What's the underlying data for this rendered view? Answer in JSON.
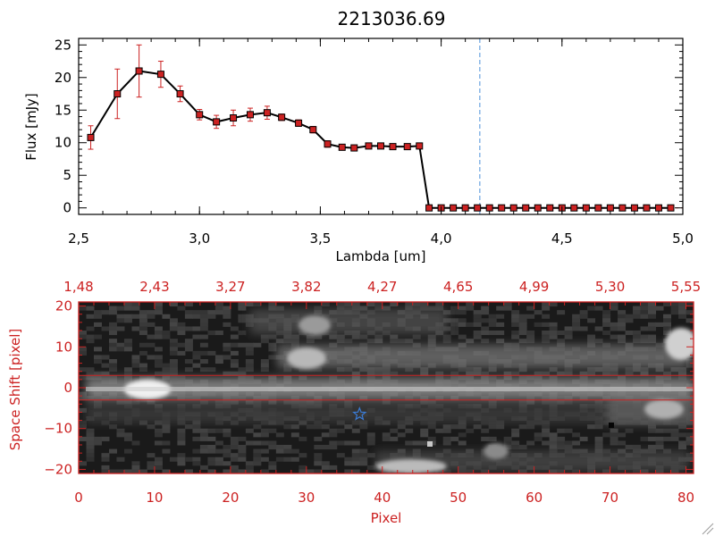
{
  "colors": {
    "line": "#000000",
    "marker": "#cc2222",
    "errorbar": "#cc2222",
    "dashed_line": "#4a90d9",
    "image_frame": "#cc2222",
    "star": "#3a7bd5"
  },
  "chart_data": [
    {
      "type": "line",
      "title": "2213036.69",
      "xlabel": "Lambda [um]",
      "ylabel": "Flux [mJy]",
      "xlim": [
        2.5,
        5.0
      ],
      "ylim": [
        -1,
        26
      ],
      "xticks": [
        2.5,
        3.0,
        3.5,
        4.0,
        4.5,
        5.0
      ],
      "xtick_labels": [
        "2,5",
        "3,0",
        "3,5",
        "4,0",
        "4,5",
        "5,0"
      ],
      "yticks": [
        0,
        5,
        10,
        15,
        20,
        25
      ],
      "ytick_labels": [
        "0",
        "5",
        "10",
        "15",
        "20",
        "25"
      ],
      "vline_x": 4.16,
      "grid": false,
      "series": [
        {
          "x": [
            2.55,
            2.66,
            2.75,
            2.84,
            2.92,
            3.0,
            3.07,
            3.14,
            3.21,
            3.28,
            3.34,
            3.41,
            3.47,
            3.53,
            3.59,
            3.64,
            3.7,
            3.75,
            3.8,
            3.86,
            3.91,
            3.95,
            4.0,
            4.05,
            4.1,
            4.15,
            4.2,
            4.25,
            4.3,
            4.35,
            4.4,
            4.45,
            4.5,
            4.55,
            4.6,
            4.65,
            4.7,
            4.75,
            4.8,
            4.85,
            4.9,
            4.95
          ],
          "y": [
            10.8,
            17.5,
            21.0,
            20.5,
            17.5,
            14.3,
            13.2,
            13.8,
            14.3,
            14.6,
            13.9,
            13.0,
            12.0,
            9.8,
            9.3,
            9.2,
            9.5,
            9.5,
            9.4,
            9.4,
            9.5,
            0.0,
            0.0,
            0.0,
            0.0,
            0.0,
            0.0,
            0.0,
            0.0,
            0.0,
            0.0,
            0.0,
            0.0,
            0.0,
            0.0,
            0.0,
            0.0,
            0.0,
            0.0,
            0.0,
            0.0,
            0.0
          ],
          "yerr": [
            1.8,
            3.8,
            4.0,
            2.0,
            1.2,
            0.8,
            1.0,
            1.2,
            1.0,
            1.0,
            0.5,
            0.5,
            0.5,
            0.5,
            0.4,
            0.4,
            0.4,
            0.4,
            0.4,
            0.4,
            0.4,
            0,
            0,
            0,
            0,
            0,
            0,
            0,
            0,
            0,
            0,
            0,
            0,
            0,
            0,
            0,
            0,
            0,
            0,
            0,
            0,
            0
          ]
        }
      ]
    },
    {
      "type": "heatmap",
      "xlabel": "Pixel",
      "ylabel": "Space Shift [pixel]",
      "xlim": [
        0,
        81
      ],
      "ylim": [
        -21,
        21
      ],
      "xticks": [
        0,
        10,
        20,
        30,
        40,
        50,
        60,
        70,
        80
      ],
      "xtick_labels": [
        "0",
        "10",
        "20",
        "30",
        "40",
        "50",
        "60",
        "70",
        "80"
      ],
      "yticks": [
        -20,
        -10,
        0,
        10,
        20
      ],
      "ytick_labels": [
        "−20",
        "−10",
        "0",
        "10",
        "20"
      ],
      "top_axis_ticks": [
        0,
        10,
        20,
        30,
        40,
        50,
        60,
        70,
        80
      ],
      "top_axis_labels": [
        "1,48",
        "2,43",
        "3,27",
        "3,82",
        "4,27",
        "4,65",
        "4,99",
        "5,30",
        "5,55"
      ],
      "aperture_lines_y": [
        3,
        -3
      ],
      "star_marker": {
        "x": 37,
        "y": -6.5
      }
    }
  ]
}
